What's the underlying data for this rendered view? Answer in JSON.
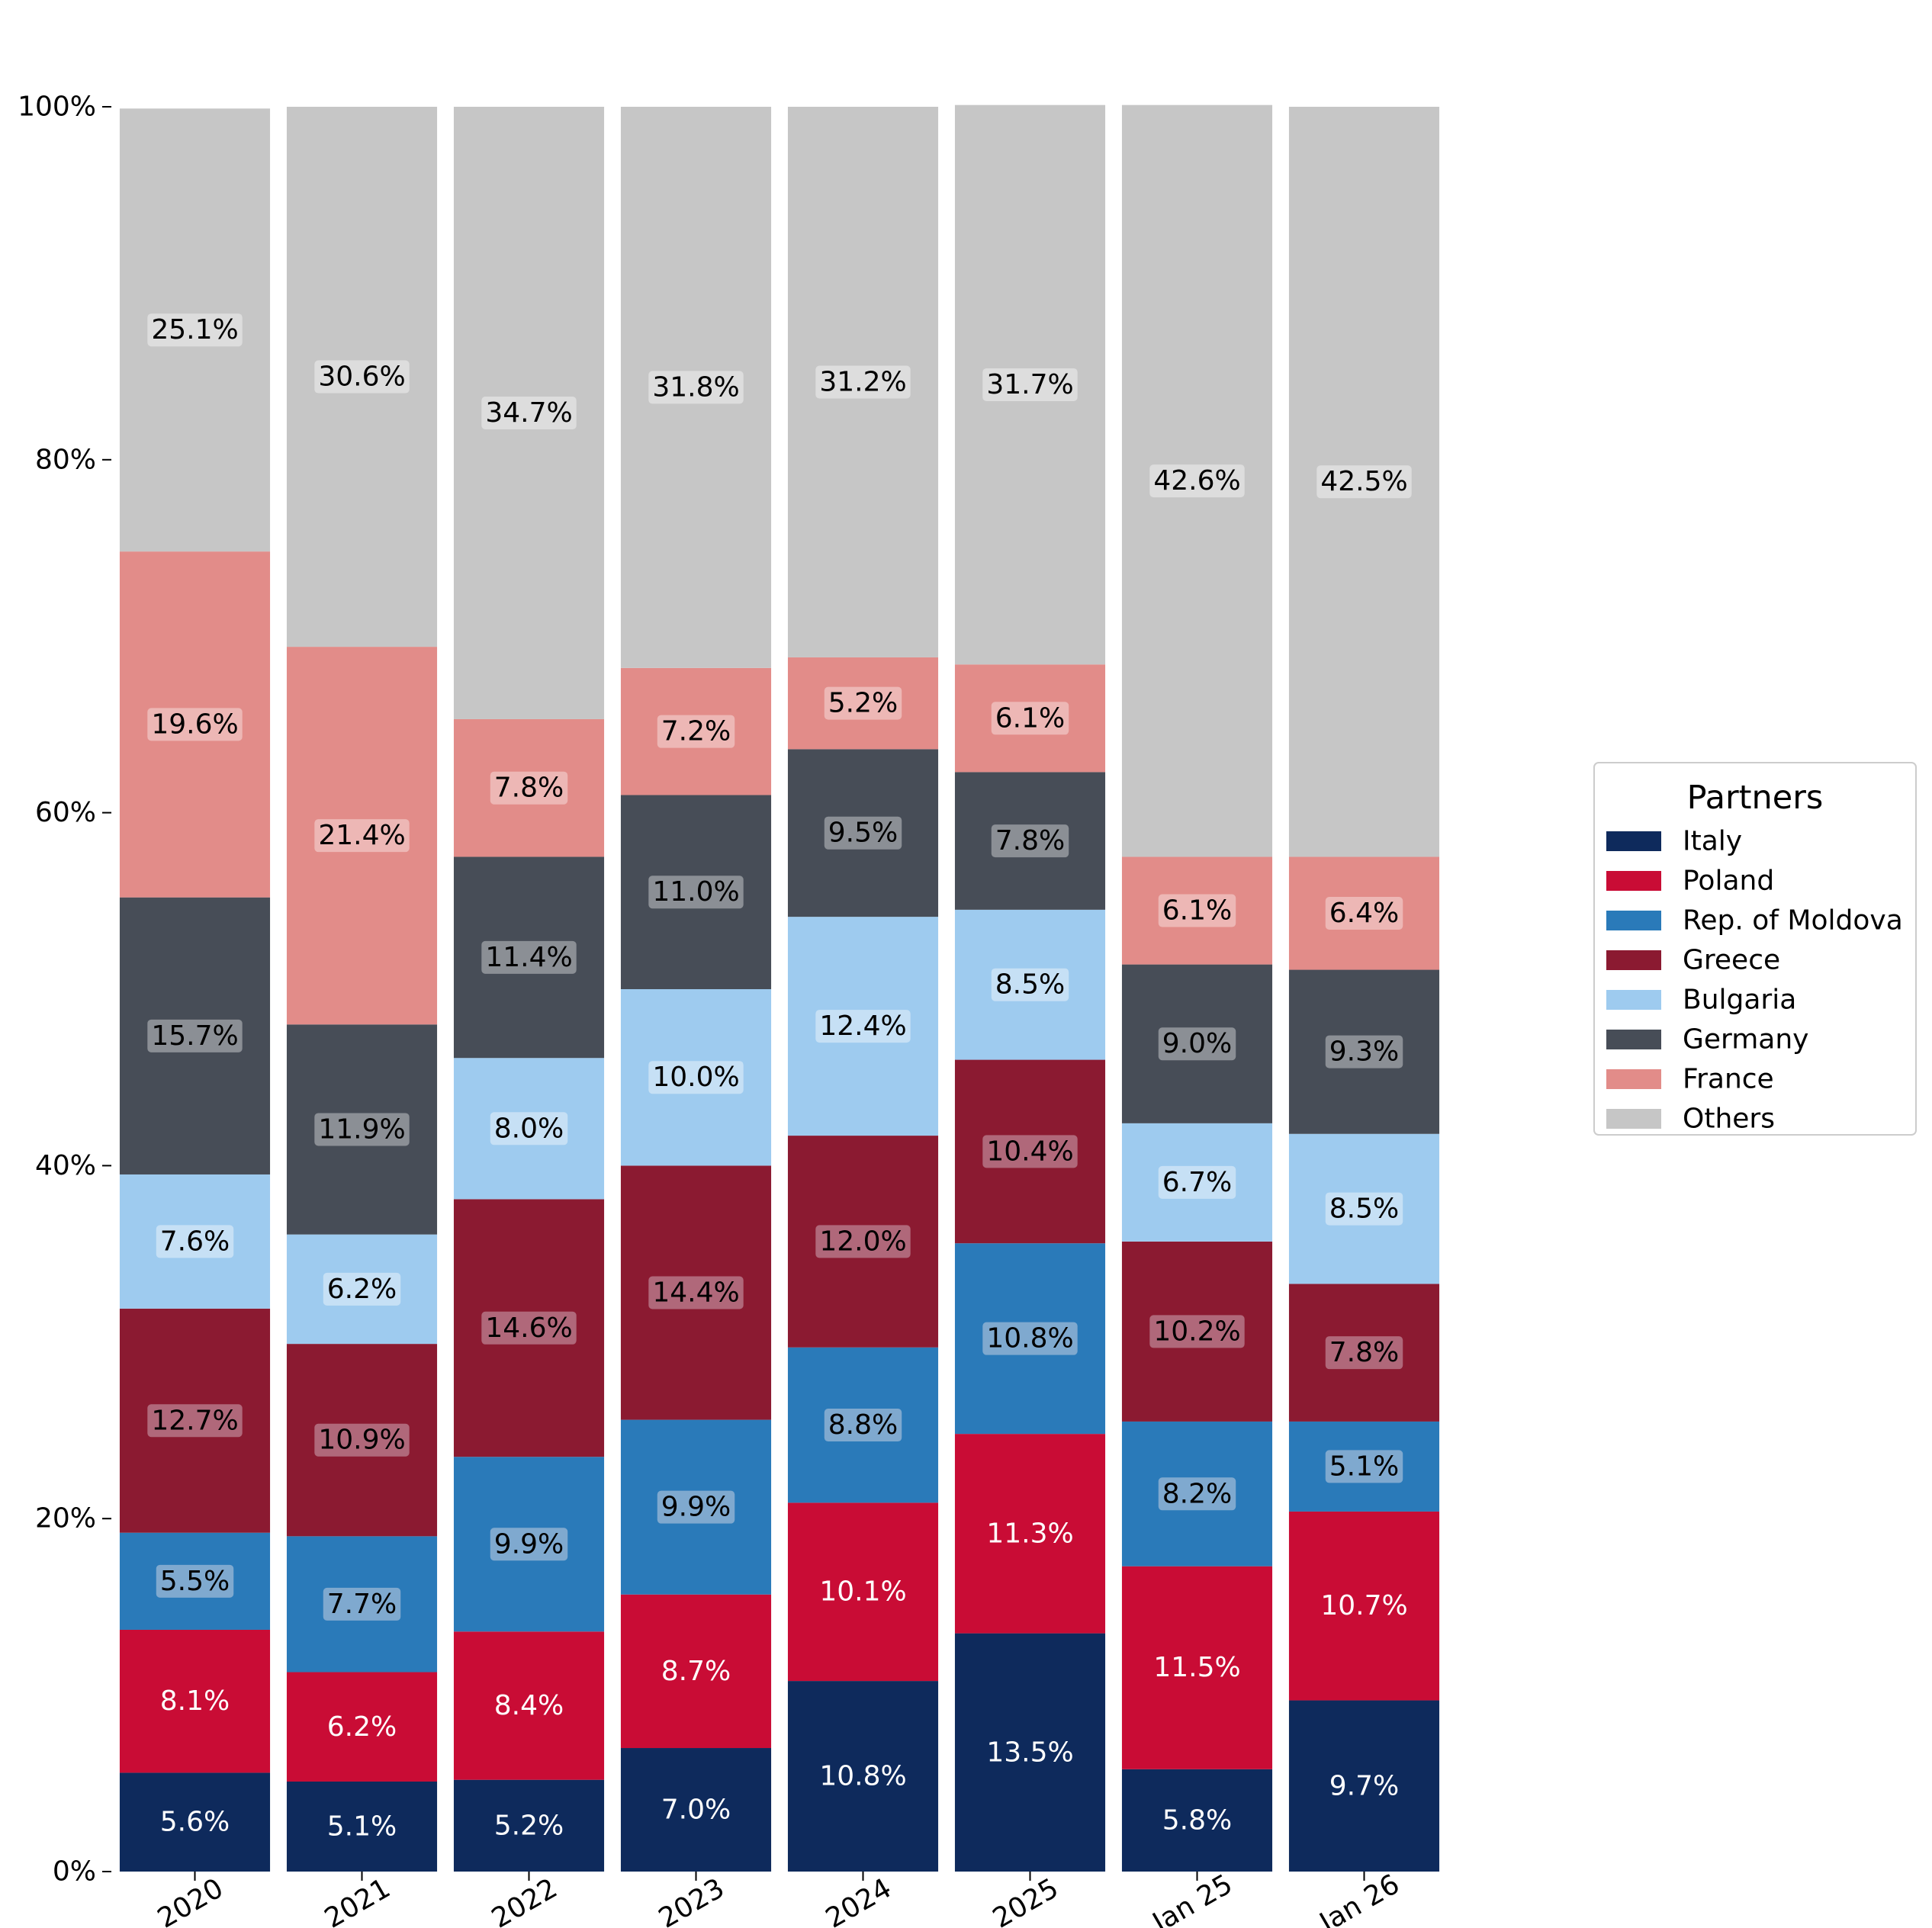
{
  "chart_data": {
    "type": "bar",
    "stacked": true,
    "categories": [
      "2020",
      "2021",
      "2022",
      "2023",
      "2024",
      "2025",
      "Jan 25",
      "Jan 26"
    ],
    "series": [
      {
        "name": "Italy",
        "color": "#0e2a5c",
        "label_color": "#ffffff",
        "label_box": "none",
        "values": [
          5.6,
          5.1,
          5.2,
          7.0,
          10.8,
          13.5,
          5.8,
          9.7
        ]
      },
      {
        "name": "Poland",
        "color": "#c90c35",
        "label_color": "#ffffff",
        "label_box": "none",
        "values": [
          8.1,
          6.2,
          8.4,
          8.7,
          10.1,
          11.3,
          11.5,
          10.7
        ]
      },
      {
        "name": "Rep. of Moldova",
        "color": "#2a7ab9",
        "label_color": "#000000",
        "label_box": "#7fa9cf",
        "values": [
          5.5,
          7.7,
          9.9,
          9.9,
          8.8,
          10.8,
          8.2,
          5.1
        ]
      },
      {
        "name": "Greece",
        "color": "#8b1a31",
        "label_color": "#000000",
        "label_box": "#b0687a",
        "values": [
          12.7,
          10.9,
          14.6,
          14.4,
          12.0,
          10.4,
          10.2,
          7.8
        ]
      },
      {
        "name": "Bulgaria",
        "color": "#9ecbef",
        "label_color": "#000000",
        "label_box": "#c6e0f5",
        "values": [
          7.6,
          6.2,
          8.0,
          10.0,
          12.4,
          8.5,
          6.7,
          8.5
        ]
      },
      {
        "name": "Germany",
        "color": "#474d57",
        "label_color": "#000000",
        "label_box": "#8b8f95",
        "values": [
          15.7,
          11.9,
          11.4,
          11.0,
          9.5,
          7.8,
          9.0,
          9.3
        ]
      },
      {
        "name": "France",
        "color": "#e28c89",
        "label_color": "#000000",
        "label_box": "#edb7b5",
        "values": [
          19.6,
          21.4,
          7.8,
          7.2,
          5.2,
          6.1,
          6.1,
          6.4
        ]
      },
      {
        "name": "Others",
        "color": "#c6c6c6",
        "label_color": "#000000",
        "label_box": "#dddddd",
        "values": [
          25.1,
          30.6,
          34.7,
          31.8,
          31.2,
          31.7,
          42.6,
          42.5
        ]
      }
    ],
    "value_suffix": "%",
    "ylim": [
      0,
      100
    ],
    "yticks": [
      0,
      20,
      40,
      60,
      80,
      100
    ],
    "ytick_labels": [
      "0%",
      "20%",
      "40%",
      "60%",
      "80%",
      "100%"
    ],
    "xlabel": "",
    "ylabel": "",
    "title": "",
    "grid": false,
    "legend": {
      "title": "Partners",
      "placement": "center-right, outside plot"
    }
  }
}
